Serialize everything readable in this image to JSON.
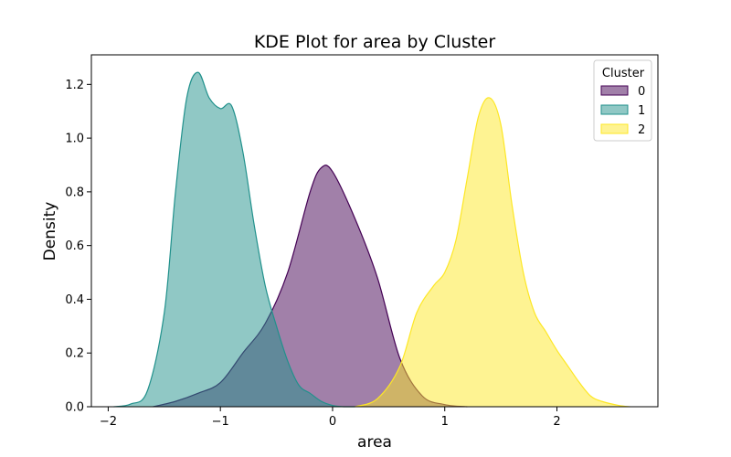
{
  "chart_data": {
    "type": "area",
    "title": "KDE Plot for area by Cluster",
    "xlabel": "area",
    "ylabel": "Density",
    "xlim": [
      -2.15,
      2.9
    ],
    "ylim": [
      0,
      1.31
    ],
    "xticks": [
      -2,
      -1,
      0,
      1,
      2
    ],
    "yticks": [
      0.0,
      0.2,
      0.4,
      0.6,
      0.8,
      1.0,
      1.2
    ],
    "grid": false,
    "legend": {
      "title": "Cluster",
      "placement": "top-right"
    },
    "series": [
      {
        "name": "0",
        "fill": "#440154",
        "stroke": "#440154",
        "x": [
          -1.6,
          -1.4,
          -1.2,
          -1.0,
          -0.8,
          -0.6,
          -0.4,
          -0.2,
          -0.1,
          0.0,
          0.2,
          0.4,
          0.6,
          0.8,
          1.0,
          1.2
        ],
        "y": [
          0.0,
          0.02,
          0.05,
          0.09,
          0.2,
          0.31,
          0.5,
          0.8,
          0.89,
          0.875,
          0.7,
          0.48,
          0.18,
          0.04,
          0.008,
          0.0
        ]
      },
      {
        "name": "1",
        "fill": "#21918c",
        "stroke": "#21918c",
        "x": [
          -1.95,
          -1.8,
          -1.65,
          -1.5,
          -1.4,
          -1.3,
          -1.2,
          -1.1,
          -1.0,
          -0.9,
          -0.8,
          -0.7,
          -0.6,
          -0.5,
          -0.4,
          -0.3,
          -0.2,
          -0.1,
          0.0,
          0.1,
          0.2
        ],
        "y": [
          0.0,
          0.01,
          0.06,
          0.35,
          0.8,
          1.15,
          1.245,
          1.15,
          1.11,
          1.12,
          0.95,
          0.68,
          0.45,
          0.3,
          0.17,
          0.08,
          0.05,
          0.02,
          0.005,
          0.0,
          0.0
        ]
      },
      {
        "name": "2",
        "fill": "#fde725",
        "stroke": "#fde725",
        "x": [
          0.2,
          0.4,
          0.6,
          0.75,
          0.9,
          1.0,
          1.1,
          1.2,
          1.3,
          1.4,
          1.5,
          1.6,
          1.7,
          1.8,
          1.9,
          2.0,
          2.1,
          2.2,
          2.3,
          2.4,
          2.55,
          2.65
        ],
        "y": [
          0.0,
          0.03,
          0.15,
          0.35,
          0.45,
          0.5,
          0.62,
          0.85,
          1.08,
          1.15,
          1.05,
          0.75,
          0.5,
          0.35,
          0.28,
          0.21,
          0.15,
          0.09,
          0.04,
          0.02,
          0.005,
          0.0
        ]
      }
    ]
  }
}
